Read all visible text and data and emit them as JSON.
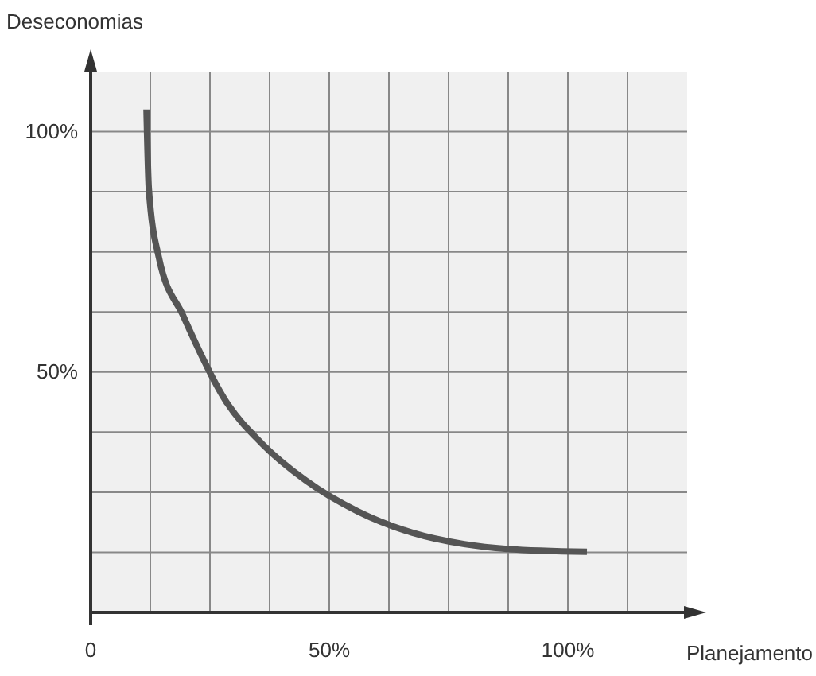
{
  "chart_data": {
    "type": "line",
    "xlabel": "Planejamento",
    "ylabel": "Deseconomias",
    "x": [
      11.7,
      12.2,
      14.3,
      19.4,
      28.3,
      36,
      45,
      56,
      67.3,
      78.3,
      87.3,
      104
    ],
    "series": [
      {
        "color": "#555555",
        "values": [
          104.6,
          88,
          73.8,
          61.7,
          44,
          35,
          27.5,
          21,
          16.6,
          14.2,
          13.2,
          12.6
        ]
      }
    ],
    "xlim": [
      0,
      125
    ],
    "ylim": [
      0,
      112.5
    ],
    "xticks": [
      {
        "value": 0,
        "label": "0"
      },
      {
        "value": 12.5,
        "label": null
      },
      {
        "value": 25,
        "label": null
      },
      {
        "value": 37.5,
        "label": null
      },
      {
        "value": 50,
        "label": "50%"
      },
      {
        "value": 62.5,
        "label": null
      },
      {
        "value": 75,
        "label": null
      },
      {
        "value": 87.5,
        "label": null
      },
      {
        "value": 100,
        "label": "100%"
      },
      {
        "value": 112.5,
        "label": null
      }
    ],
    "yticks": [
      {
        "value": 12.5,
        "label": null
      },
      {
        "value": 25,
        "label": null
      },
      {
        "value": 37.5,
        "label": null
      },
      {
        "value": 50,
        "label": "50%"
      },
      {
        "value": 62.5,
        "label": null
      },
      {
        "value": 75,
        "label": null
      },
      {
        "value": 87.5,
        "label": null
      },
      {
        "value": 100,
        "label": "100%"
      }
    ],
    "grid": true,
    "marker": "none",
    "line_style": "solid"
  }
}
